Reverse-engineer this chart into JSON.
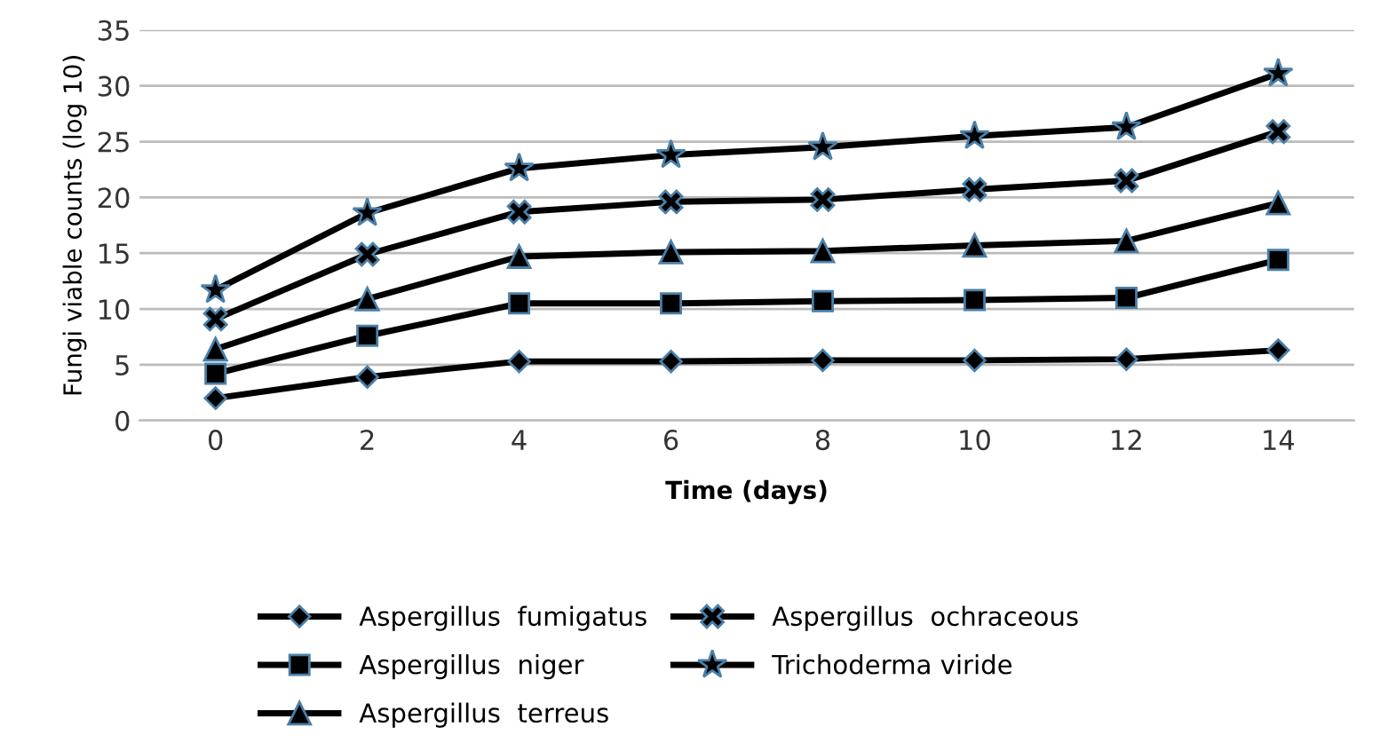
{
  "chart_data": {
    "type": "line",
    "xlabel": "Time (days)",
    "ylabel": "Fungi viable counts (log 10)",
    "categories": [
      "0",
      "2",
      "4",
      "6",
      "8",
      "10",
      "12",
      "14"
    ],
    "series": [
      {
        "name": "Aspergillus  fumigatus",
        "color": "#000000",
        "marker": "diamond",
        "values": [
          2.0,
          3.9,
          5.3,
          5.3,
          5.4,
          5.4,
          5.5,
          6.3
        ]
      },
      {
        "name": "Aspergillus  niger",
        "color": "#000000",
        "marker": "square",
        "values": [
          4.2,
          7.6,
          10.5,
          10.5,
          10.7,
          10.8,
          11.0,
          14.4
        ]
      },
      {
        "name": "Aspergillus  terreus",
        "color": "#000000",
        "marker": "triangle",
        "values": [
          6.4,
          10.9,
          14.7,
          15.1,
          15.2,
          15.7,
          16.1,
          19.5
        ]
      },
      {
        "name": "Aspergillus  ochraceous",
        "color": "#000000",
        "marker": "cross",
        "values": [
          9.1,
          14.9,
          18.7,
          19.6,
          19.8,
          20.7,
          21.5,
          25.9
        ]
      },
      {
        "name": "Trichoderma viride",
        "color": "#000000",
        "marker": "star",
        "values": [
          11.7,
          18.6,
          22.6,
          23.8,
          24.5,
          25.5,
          26.3,
          31.1
        ]
      }
    ],
    "ylim": [
      0,
      35
    ],
    "yticks": [
      0,
      5,
      10,
      15,
      20,
      25,
      30,
      35
    ],
    "grid": "y",
    "legend": "bottom",
    "line_style": "solid"
  }
}
